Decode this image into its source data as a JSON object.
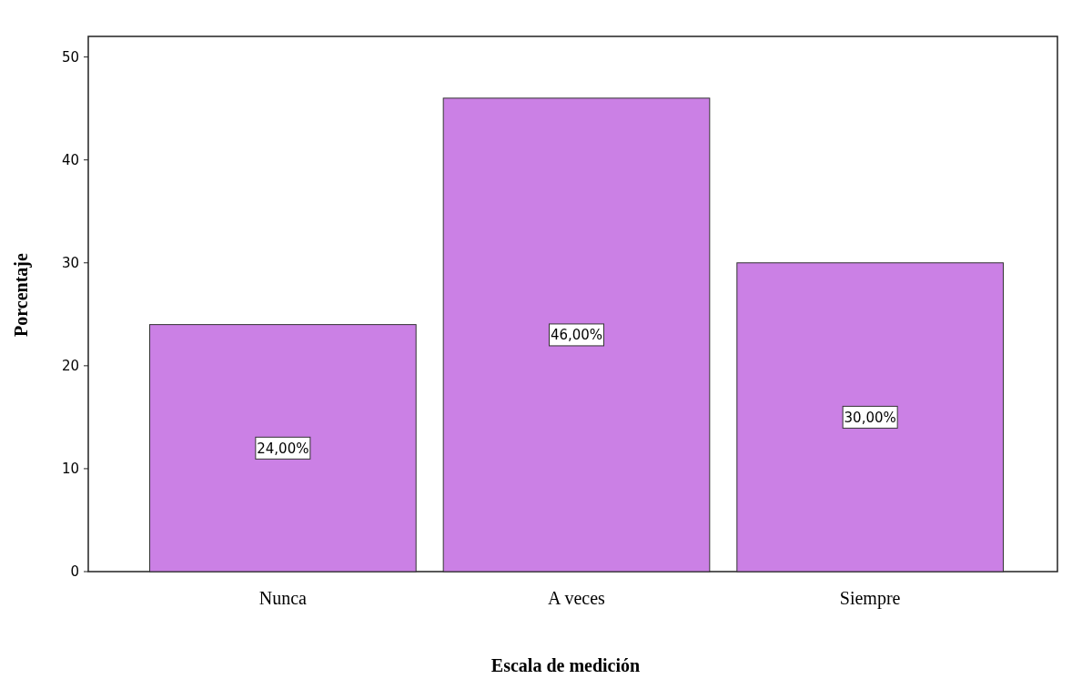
{
  "chart_data": {
    "type": "bar",
    "xlabel": "Escala de medición",
    "ylabel": "Porcentaje",
    "categories": [
      "Nunca",
      "A veces",
      "Siempre"
    ],
    "values": [
      24,
      46,
      30
    ],
    "value_labels": [
      "24,00%",
      "46,00%",
      "30,00%"
    ],
    "color": "#cb80e5",
    "ylim": [
      0,
      52
    ],
    "yticks": [
      0,
      10,
      20,
      30,
      40,
      50
    ],
    "grid": false
  }
}
